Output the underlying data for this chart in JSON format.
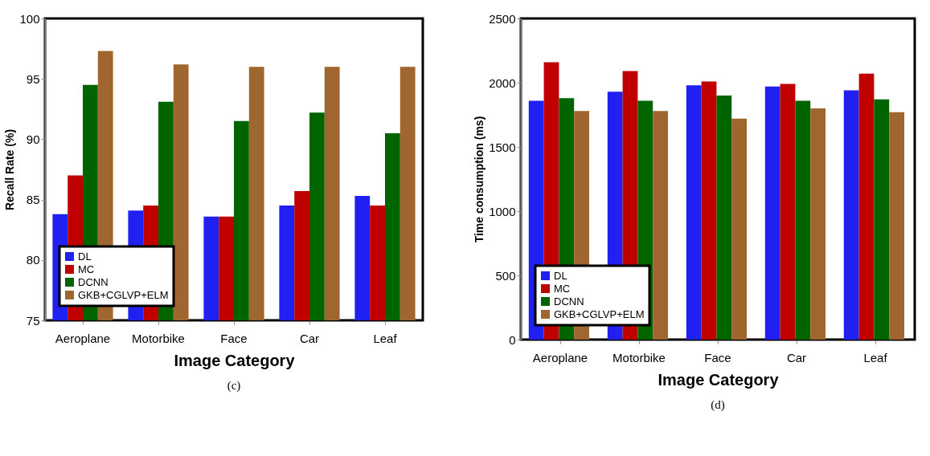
{
  "chart_data": [
    {
      "type": "bar",
      "categories": [
        "Aeroplane",
        "Motorbike",
        "Face",
        "Car",
        "Leaf"
      ],
      "xlabel": "Image Category",
      "ylabel": "Recall Rate (%)",
      "ylim": [
        75,
        100
      ],
      "yticks": [
        75,
        80,
        85,
        90,
        95,
        100
      ],
      "grid": false,
      "legend": "bottom left",
      "annotations": [
        "(c)"
      ],
      "series": [
        {
          "name": "DL",
          "color": "#2020f0",
          "values": [
            83.8,
            84.1,
            83.6,
            84.5,
            85.3
          ]
        },
        {
          "name": "MC",
          "color": "#c00000",
          "values": [
            87.0,
            84.5,
            83.6,
            85.7,
            84.5
          ]
        },
        {
          "name": "DCNN",
          "color": "#006400",
          "values": [
            94.5,
            93.1,
            91.5,
            92.2,
            90.5
          ]
        },
        {
          "name": "GKB+CGLVP+ELM",
          "color": "#a0662f",
          "values": [
            97.3,
            96.2,
            96.0,
            96.0,
            96.0
          ]
        }
      ]
    },
    {
      "type": "bar",
      "categories": [
        "Aeroplane",
        "Motorbike",
        "Face",
        "Car",
        "Leaf"
      ],
      "xlabel": "Image Category",
      "ylabel": "Time consumption (ms)",
      "ylim": [
        0,
        2500
      ],
      "yticks": [
        0,
        500,
        1000,
        1500,
        2000,
        2500
      ],
      "grid": false,
      "legend": "bottom left",
      "annotations": [
        "(d)"
      ],
      "series": [
        {
          "name": "DL",
          "color": "#2020f0",
          "values": [
            1860,
            1930,
            1980,
            1970,
            1940
          ]
        },
        {
          "name": "MC",
          "color": "#c00000",
          "values": [
            2160,
            2090,
            2010,
            1990,
            2070
          ]
        },
        {
          "name": "DCNN",
          "color": "#006400",
          "values": [
            1880,
            1860,
            1900,
            1860,
            1870
          ]
        },
        {
          "name": "GKB+CGLVP+ELM",
          "color": "#a0662f",
          "values": [
            1780,
            1780,
            1720,
            1800,
            1770
          ]
        }
      ]
    }
  ]
}
